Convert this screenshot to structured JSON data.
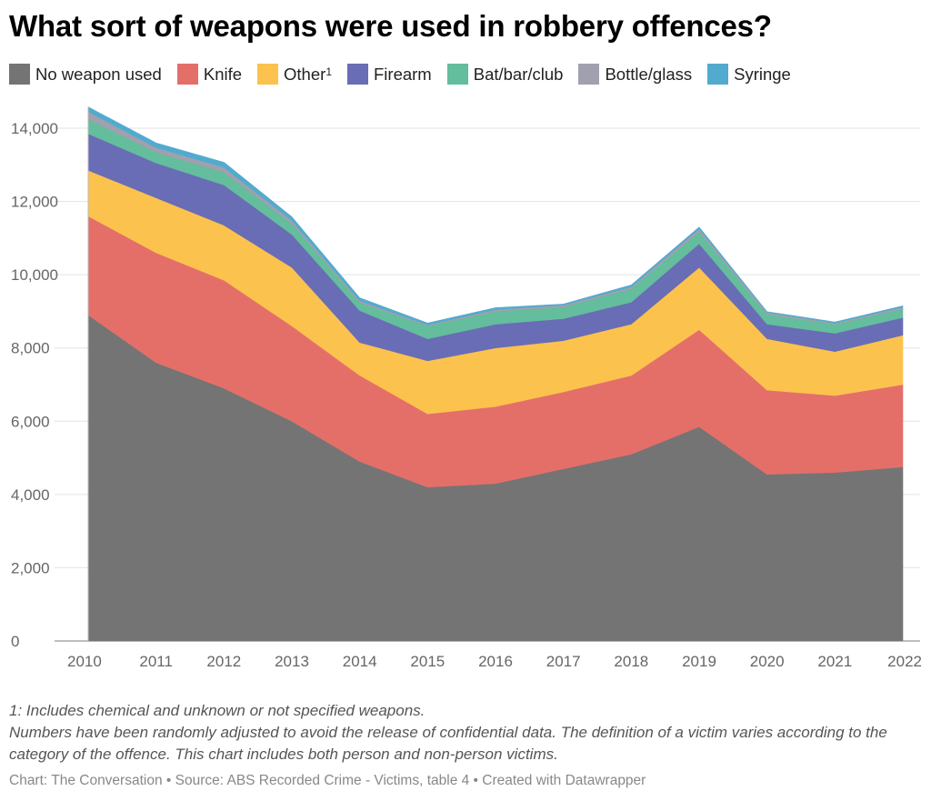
{
  "title": "What sort of weapons were used in robbery offences?",
  "chart_data": {
    "type": "area",
    "stacked": true,
    "title": "What sort of weapons were used in robbery offences?",
    "xlabel": "",
    "ylabel": "",
    "ylim": [
      0,
      14600
    ],
    "yticks": [
      0,
      2000,
      4000,
      6000,
      8000,
      10000,
      12000,
      14000
    ],
    "ytick_labels": [
      "0",
      "2,000",
      "4,000",
      "6,000",
      "8,000",
      "10,000",
      "12,000",
      "14,000"
    ],
    "grid": true,
    "legend_position": "top",
    "categories": [
      "2010",
      "2011",
      "2012",
      "2013",
      "2014",
      "2015",
      "2016",
      "2017",
      "2018",
      "2019",
      "2020",
      "2021",
      "2022"
    ],
    "series": [
      {
        "name": "No weapon used",
        "sup": "",
        "color": "#747474",
        "values": [
          8900,
          7600,
          6900,
          6000,
          4900,
          4200,
          4300,
          4700,
          5100,
          5850,
          4550,
          4600,
          4750
        ]
      },
      {
        "name": "Knife",
        "sup": "",
        "color": "#e46f69",
        "values": [
          2700,
          3000,
          2950,
          2600,
          2350,
          2000,
          2100,
          2100,
          2150,
          2650,
          2300,
          2100,
          2250
        ]
      },
      {
        "name": "Other",
        "sup": "1",
        "color": "#fcc24e",
        "values": [
          1250,
          1500,
          1500,
          1600,
          900,
          1450,
          1600,
          1400,
          1400,
          1700,
          1400,
          1200,
          1350
        ]
      },
      {
        "name": "Firearm",
        "sup": "",
        "color": "#686db5",
        "values": [
          1000,
          950,
          1100,
          900,
          870,
          600,
          650,
          600,
          600,
          650,
          400,
          500,
          480
        ]
      },
      {
        "name": "Bat/bar/club",
        "sup": "",
        "color": "#64bd9c",
        "values": [
          400,
          300,
          350,
          300,
          220,
          350,
          350,
          320,
          370,
          320,
          270,
          250,
          240
        ]
      },
      {
        "name": "Bottle/glass",
        "sup": "",
        "color": "#a1a0ae",
        "values": [
          200,
          120,
          130,
          80,
          50,
          30,
          50,
          50,
          50,
          80,
          50,
          30,
          50
        ]
      },
      {
        "name": "Syringe",
        "sup": "",
        "color": "#52abcf",
        "values": [
          130,
          130,
          140,
          100,
          80,
          50,
          50,
          30,
          50,
          50,
          20,
          30,
          30
        ]
      }
    ]
  },
  "notes": {
    "footnote": "1: Includes chemical and unknown or not specified weapons.",
    "disclaimer": "Numbers have been randomly adjusted to avoid the release of confidential data. The definition of a victim varies according to the category of the offence. This chart includes both person and non-person victims."
  },
  "source": "Chart: The Conversation • Source: ABS Recorded Crime - Victims, table 4 • Created with Datawrapper"
}
